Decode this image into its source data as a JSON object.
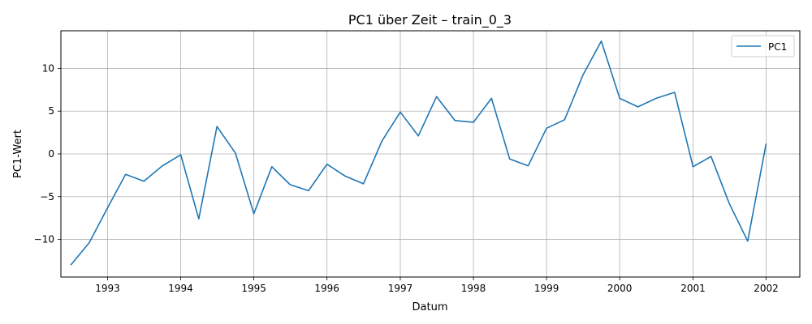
{
  "chart_data": {
    "type": "line",
    "title": "PC1 über Zeit – train_0_3",
    "xlabel": "Datum",
    "ylabel": "PC1-Wert",
    "xlim": [
      "1992-05-13",
      "2002-06-18"
    ],
    "ylim": [
      -14.4,
      14.4
    ],
    "x_ticks": [
      "1993",
      "1994",
      "1995",
      "1996",
      "1997",
      "1998",
      "1999",
      "2000",
      "2001",
      "2002"
    ],
    "y_ticks": [
      -10,
      -5,
      0,
      5,
      10
    ],
    "y_tick_labels": [
      "−10",
      "−5",
      "0",
      "5",
      "10"
    ],
    "grid": true,
    "legend_position": "upper right",
    "series": [
      {
        "name": "PC1",
        "color": "#1f77b4",
        "x": [
          "1992-07-01",
          "1992-10-01",
          "1993-01-01",
          "1993-04-01",
          "1993-07-01",
          "1993-10-01",
          "1994-01-01",
          "1994-04-01",
          "1994-07-01",
          "1994-10-01",
          "1995-01-01",
          "1995-04-01",
          "1995-07-01",
          "1995-10-01",
          "1996-01-01",
          "1996-04-01",
          "1996-07-01",
          "1996-10-01",
          "1997-01-01",
          "1997-04-01",
          "1997-07-01",
          "1997-10-01",
          "1998-01-01",
          "1998-04-01",
          "1998-07-01",
          "1998-10-01",
          "1999-01-01",
          "1999-04-01",
          "1999-07-01",
          "1999-10-01",
          "2000-01-01",
          "2000-04-01",
          "2000-07-01",
          "2000-10-01",
          "2001-01-01",
          "2001-04-01",
          "2001-07-01",
          "2001-10-01",
          "2002-01-01"
        ],
        "values": [
          -13.0,
          -10.4,
          -6.3,
          -2.4,
          -3.2,
          -1.4,
          -0.1,
          -7.6,
          3.2,
          0.1,
          -7.0,
          -1.5,
          -3.6,
          -4.3,
          -1.2,
          -2.6,
          -3.5,
          1.5,
          4.9,
          2.1,
          6.7,
          3.9,
          3.7,
          6.5,
          -0.6,
          -1.4,
          3.0,
          4.0,
          9.2,
          13.2,
          6.5,
          5.5,
          6.5,
          7.2,
          -1.5,
          -0.3,
          -5.8,
          -10.2,
          1.2
        ]
      }
    ]
  }
}
